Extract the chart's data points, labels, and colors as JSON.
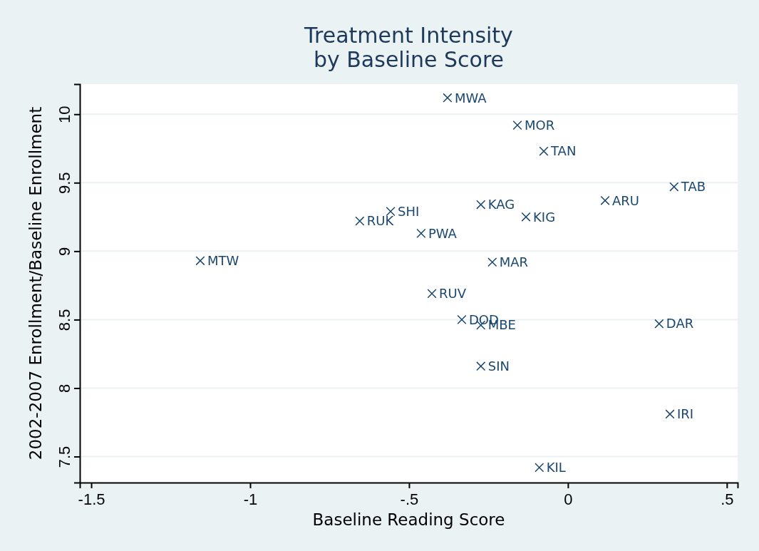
{
  "chart_data": {
    "type": "scatter",
    "title": "Treatment Intensity\nby Baseline Score",
    "xlabel": "Baseline Reading Score",
    "ylabel": "2002-2007 Enrollment/Baseline Enrollment",
    "x": [
      -0.379,
      -0.159,
      -0.076,
      0.334,
      0.117,
      -0.274,
      -0.132,
      -0.558,
      -0.655,
      -0.462,
      -1.157,
      -0.238,
      -0.428,
      -0.334,
      -0.274,
      0.287,
      -0.274,
      0.321,
      -0.09
    ],
    "series": [
      {
        "color": "#1a476f",
        "values": [
          10.12,
          9.92,
          9.73,
          9.47,
          9.37,
          9.34,
          9.25,
          9.29,
          9.22,
          9.13,
          8.93,
          8.92,
          8.69,
          8.5,
          8.46,
          8.47,
          8.16,
          7.81,
          7.42
        ]
      }
    ],
    "annotations": [
      {
        "text": "MWA",
        "x": -0.379,
        "y": 10.12
      },
      {
        "text": "MOR",
        "x": -0.159,
        "y": 9.92
      },
      {
        "text": "TAN",
        "x": -0.076,
        "y": 9.73
      },
      {
        "text": "TAB",
        "x": 0.334,
        "y": 9.47
      },
      {
        "text": "ARU",
        "x": 0.117,
        "y": 9.37
      },
      {
        "text": "KAG",
        "x": -0.274,
        "y": 9.34
      },
      {
        "text": "KIG",
        "x": -0.132,
        "y": 9.25
      },
      {
        "text": "SHI",
        "x": -0.558,
        "y": 9.29
      },
      {
        "text": "RUK",
        "x": -0.655,
        "y": 9.22
      },
      {
        "text": "PWA",
        "x": -0.462,
        "y": 9.13
      },
      {
        "text": "MTW",
        "x": -1.157,
        "y": 8.93
      },
      {
        "text": "MAR",
        "x": -0.238,
        "y": 8.92
      },
      {
        "text": "RUV",
        "x": -0.428,
        "y": 8.69
      },
      {
        "text": "DOD",
        "x": -0.334,
        "y": 8.5
      },
      {
        "text": "MBE",
        "x": -0.274,
        "y": 8.46
      },
      {
        "text": "DAR",
        "x": 0.287,
        "y": 8.47
      },
      {
        "text": "SIN",
        "x": -0.274,
        "y": 8.16
      },
      {
        "text": "IRI",
        "x": 0.321,
        "y": 7.81
      },
      {
        "text": "KIL",
        "x": -0.09,
        "y": 7.42
      }
    ],
    "xlim": [
      -1.536,
      0.534
    ],
    "xticks": [
      {
        "value": -1.5,
        "label": "-1.5"
      },
      {
        "value": -1,
        "label": "-1"
      },
      {
        "value": -0.5,
        "label": "-.5"
      },
      0,
      {
        "value": 0.5,
        "label": ".5"
      }
    ],
    "ylim": [
      7.31,
      10.22
    ],
    "yticks": [
      7.5,
      8,
      8.5,
      9,
      9.5,
      10
    ],
    "grid": "y",
    "marker": "cross"
  }
}
